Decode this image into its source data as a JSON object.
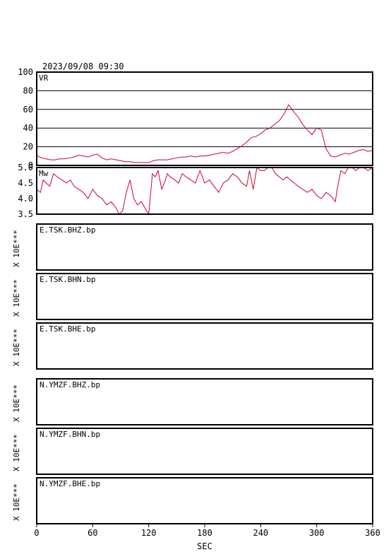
{
  "chart_data": [
    {
      "type": "line",
      "title": "2023/09/08 09:30",
      "ylabel": "VR",
      "xlabel": "SEC",
      "xlim": [
        0,
        360
      ],
      "ylim": [
        0,
        100
      ],
      "yticks": [
        "0",
        "20",
        "40",
        "60",
        "80",
        "100"
      ],
      "xticks": [
        "0",
        "60",
        "120",
        "180",
        "240",
        "300",
        "360"
      ],
      "grid": true,
      "color": "#cc0033",
      "series": [
        {
          "x": [
            0,
            5,
            10,
            15,
            20,
            25,
            30,
            35,
            40,
            45,
            50,
            55,
            60,
            65,
            70,
            75,
            80,
            85,
            90,
            95,
            100,
            105,
            110,
            115,
            120,
            125,
            130,
            135,
            140,
            145,
            150,
            155,
            160,
            165,
            170,
            175,
            180,
            185,
            190,
            195,
            200,
            205,
            210,
            215,
            220,
            225,
            230,
            235,
            240,
            245,
            250,
            255,
            260,
            265,
            270,
            275,
            280,
            285,
            290,
            295,
            300,
            305,
            310,
            315,
            320,
            325,
            330,
            335,
            340,
            345,
            350,
            355,
            360
          ],
          "values": [
            11,
            8,
            7,
            6,
            6,
            7,
            7,
            8,
            9,
            11,
            10,
            9,
            11,
            12,
            8,
            6,
            7,
            6,
            5,
            4,
            4,
            3,
            3,
            3,
            3,
            5,
            6,
            6,
            6,
            7,
            8,
            9,
            9,
            10,
            9,
            10,
            10,
            11,
            12,
            13,
            14,
            13,
            15,
            18,
            21,
            25,
            30,
            31,
            34,
            38,
            40,
            44,
            48,
            55,
            65,
            58,
            52,
            44,
            38,
            33,
            40,
            38,
            18,
            10,
            9,
            11,
            13,
            12,
            14,
            16,
            17,
            15,
            16
          ]
        }
      ]
    },
    {
      "type": "line",
      "ylabel": "Mw",
      "xlim": [
        0,
        360
      ],
      "ylim": [
        3.5,
        5.0
      ],
      "yticks": [
        "3.5",
        "4.0",
        "4.5",
        "5.0"
      ],
      "color": "#cc0033",
      "series": [
        {
          "x": [
            0,
            4,
            7,
            10,
            14,
            18,
            22,
            27,
            32,
            36,
            40,
            45,
            50,
            55,
            60,
            65,
            70,
            75,
            80,
            85,
            88,
            92,
            96,
            100,
            104,
            108,
            112,
            116,
            120,
            124,
            127,
            130,
            134,
            138,
            140,
            143,
            148,
            152,
            156,
            160,
            165,
            170,
            175,
            180,
            185,
            190,
            195,
            200,
            205,
            210,
            215,
            220,
            225,
            228,
            232,
            236,
            240,
            244,
            248,
            252,
            256,
            260,
            264,
            268,
            272,
            276,
            280,
            285,
            290,
            295,
            300,
            305,
            310,
            315,
            320,
            322,
            326,
            330,
            334,
            338,
            342,
            346,
            350,
            355,
            360
          ],
          "values": [
            4.3,
            4.2,
            4.6,
            4.5,
            4.4,
            4.8,
            4.7,
            4.6,
            4.5,
            4.6,
            4.4,
            4.3,
            4.2,
            4.0,
            4.3,
            4.1,
            4.0,
            3.8,
            3.9,
            3.7,
            3.5,
            3.6,
            4.2,
            4.6,
            4.0,
            3.8,
            3.9,
            3.7,
            3.5,
            4.8,
            4.7,
            4.9,
            4.3,
            4.6,
            4.8,
            4.7,
            4.6,
            4.5,
            4.8,
            4.7,
            4.6,
            4.5,
            4.9,
            4.5,
            4.6,
            4.4,
            4.2,
            4.5,
            4.6,
            4.8,
            4.7,
            4.5,
            4.4,
            4.9,
            4.3,
            5.0,
            4.9,
            4.9,
            5.0,
            5.0,
            4.8,
            4.7,
            4.6,
            4.7,
            4.6,
            4.5,
            4.4,
            4.3,
            4.2,
            4.3,
            4.1,
            4.0,
            4.2,
            4.1,
            3.9,
            4.3,
            4.9,
            4.8,
            5.0,
            5.0,
            4.9,
            5.0,
            5.0,
            4.9,
            5.0
          ]
        }
      ]
    }
  ],
  "waveforms": [
    {
      "label": "E.TSK.BHZ.bp",
      "scale": "X 10E***"
    },
    {
      "label": "E.TSK.BHN.bp",
      "scale": "X 10E***"
    },
    {
      "label": "E.TSK.BHE.bp",
      "scale": "X 10E***"
    },
    {
      "label": "N.YMZF.BHZ.bp",
      "scale": "X 10E***"
    },
    {
      "label": "N.YMZF.BHN.bp",
      "scale": "X 10E***"
    },
    {
      "label": "N.YMZF.BHE.bp",
      "scale": "X 10E***"
    }
  ]
}
